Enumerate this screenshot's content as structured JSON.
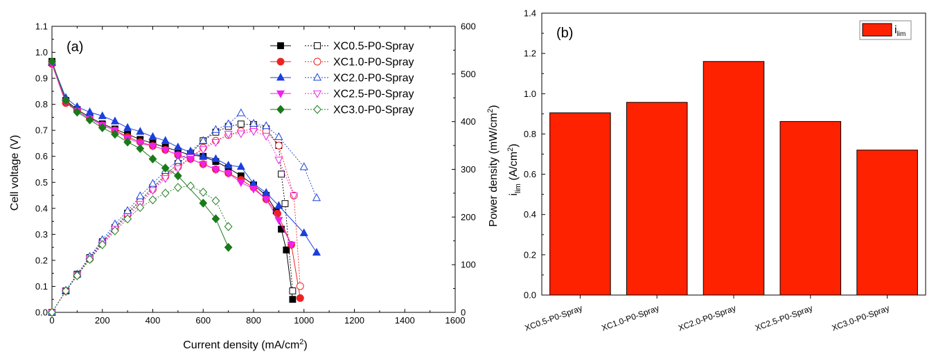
{
  "chart_data": [
    {
      "type": "line",
      "panel_label": "(a)",
      "xlabel": "Current density (mA/cm",
      "xlabel_sup": "2",
      "xlabel_end": ")",
      "ylabel": "Cell voltage (V)",
      "ylabel_right": "Power density (mW/cm",
      "ylabel_right_sup": "2",
      "ylabel_right_end": ")",
      "xlim": [
        0,
        1600
      ],
      "ylim": [
        0,
        1.1
      ],
      "ylim_right": [
        0,
        600
      ],
      "xticks": [
        "0",
        "200",
        "400",
        "600",
        "800",
        "1000",
        "1200",
        "1400",
        "1600"
      ],
      "yticks": [
        "0.0",
        "0.1",
        "0.2",
        "0.3",
        "0.4",
        "0.5",
        "0.6",
        "0.7",
        "0.8",
        "0.9",
        "1.0",
        "1.1"
      ],
      "yticks_right": [
        "0",
        "100",
        "200",
        "300",
        "400",
        "500",
        "600"
      ],
      "legend_position": "top-right",
      "series": [
        {
          "name": "XC0.5-P0-Spray",
          "color": "#000000",
          "marker": "square",
          "voltage": [
            [
              0,
              0.965
            ],
            [
              55,
              0.815
            ],
            [
              100,
              0.78
            ],
            [
              150,
              0.75
            ],
            [
              200,
              0.725
            ],
            [
              250,
              0.705
            ],
            [
              300,
              0.685
            ],
            [
              350,
              0.665
            ],
            [
              400,
              0.65
            ],
            [
              450,
              0.635
            ],
            [
              500,
              0.62
            ],
            [
              550,
              0.605
            ],
            [
              600,
              0.6
            ],
            [
              650,
              0.58
            ],
            [
              700,
              0.555
            ],
            [
              750,
              0.525
            ],
            [
              800,
              0.49
            ],
            [
              850,
              0.45
            ],
            [
              890,
              0.39
            ],
            [
              910,
              0.32
            ],
            [
              930,
              0.24
            ],
            [
              955,
              0.05
            ]
          ],
          "power": [
            [
              0,
              0
            ],
            [
              55,
              45
            ],
            [
              100,
              80
            ],
            [
              150,
              115
            ],
            [
              200,
              148
            ],
            [
              250,
              178
            ],
            [
              300,
              208
            ],
            [
              350,
              235
            ],
            [
              400,
              262
            ],
            [
              450,
              288
            ],
            [
              500,
              312
            ],
            [
              550,
              333
            ],
            [
              600,
              360
            ],
            [
              650,
              378
            ],
            [
              700,
              390
            ],
            [
              750,
              395
            ],
            [
              800,
              394
            ],
            [
              850,
              385
            ],
            [
              900,
              350
            ],
            [
              910,
              290
            ],
            [
              925,
              228
            ],
            [
              955,
              45
            ]
          ]
        },
        {
          "name": "XC1.0-P0-Spray",
          "color": "#ee2222",
          "marker": "circle",
          "voltage": [
            [
              0,
              0.955
            ],
            [
              55,
              0.805
            ],
            [
              100,
              0.775
            ],
            [
              150,
              0.745
            ],
            [
              200,
              0.72
            ],
            [
              250,
              0.7
            ],
            [
              300,
              0.675
            ],
            [
              350,
              0.655
            ],
            [
              400,
              0.64
            ],
            [
              450,
              0.625
            ],
            [
              500,
              0.605
            ],
            [
              550,
              0.59
            ],
            [
              600,
              0.57
            ],
            [
              650,
              0.55
            ],
            [
              700,
              0.535
            ],
            [
              750,
              0.51
            ],
            [
              800,
              0.48
            ],
            [
              850,
              0.435
            ],
            [
              895,
              0.38
            ],
            [
              950,
              0.26
            ],
            [
              985,
              0.055
            ]
          ],
          "power": [
            [
              0,
              0
            ],
            [
              55,
              45
            ],
            [
              100,
              78
            ],
            [
              150,
              112
            ],
            [
              200,
              145
            ],
            [
              250,
              175
            ],
            [
              300,
              205
            ],
            [
              350,
              232
            ],
            [
              400,
              258
            ],
            [
              450,
              285
            ],
            [
              500,
              305
            ],
            [
              550,
              325
            ],
            [
              600,
              345
            ],
            [
              650,
              360
            ],
            [
              700,
              372
            ],
            [
              750,
              380
            ],
            [
              800,
              385
            ],
            [
              850,
              380
            ],
            [
              900,
              350
            ],
            [
              960,
              245
            ],
            [
              985,
              55
            ]
          ]
        },
        {
          "name": "XC2.0-P0-Spray",
          "color": "#1a3fdd",
          "marker": "triangle-up",
          "voltage": [
            [
              0,
              0.96
            ],
            [
              55,
              0.825
            ],
            [
              100,
              0.79
            ],
            [
              150,
              0.77
            ],
            [
              200,
              0.755
            ],
            [
              250,
              0.735
            ],
            [
              300,
              0.71
            ],
            [
              350,
              0.695
            ],
            [
              400,
              0.675
            ],
            [
              450,
              0.66
            ],
            [
              500,
              0.635
            ],
            [
              550,
              0.615
            ],
            [
              600,
              0.6
            ],
            [
              650,
              0.59
            ],
            [
              700,
              0.565
            ],
            [
              750,
              0.56
            ],
            [
              800,
              0.495
            ],
            [
              850,
              0.46
            ],
            [
              900,
              0.41
            ],
            [
              1000,
              0.305
            ],
            [
              1050,
              0.23
            ]
          ],
          "power": [
            [
              0,
              0
            ],
            [
              55,
              46
            ],
            [
              100,
              80
            ],
            [
              150,
              117
            ],
            [
              200,
              152
            ],
            [
              250,
              185
            ],
            [
              300,
              213
            ],
            [
              350,
              244
            ],
            [
              400,
              270
            ],
            [
              450,
              297
            ],
            [
              500,
              318
            ],
            [
              550,
              338
            ],
            [
              600,
              360
            ],
            [
              650,
              383
            ],
            [
              700,
              395
            ],
            [
              750,
              418
            ],
            [
              800,
              396
            ],
            [
              850,
              391
            ],
            [
              900,
              368
            ],
            [
              1000,
              305
            ],
            [
              1050,
              240
            ]
          ]
        },
        {
          "name": "XC2.5-P0-Spray",
          "color": "#ee22ee",
          "marker": "triangle-down",
          "voltage": [
            [
              0,
              0.955
            ],
            [
              55,
              0.81
            ],
            [
              100,
              0.775
            ],
            [
              150,
              0.745
            ],
            [
              200,
              0.72
            ],
            [
              250,
              0.7
            ],
            [
              300,
              0.67
            ],
            [
              350,
              0.65
            ],
            [
              400,
              0.64
            ],
            [
              450,
              0.625
            ],
            [
              500,
              0.605
            ],
            [
              550,
              0.59
            ],
            [
              600,
              0.57
            ],
            [
              650,
              0.55
            ],
            [
              700,
              0.535
            ],
            [
              750,
              0.5
            ],
            [
              800,
              0.475
            ],
            [
              850,
              0.435
            ],
            [
              900,
              0.355
            ],
            [
              950,
              0.26
            ]
          ],
          "power": [
            [
              0,
              0
            ],
            [
              55,
              44
            ],
            [
              100,
              77
            ],
            [
              150,
              112
            ],
            [
              200,
              144
            ],
            [
              250,
              175
            ],
            [
              300,
              201
            ],
            [
              350,
              227
            ],
            [
              400,
              256
            ],
            [
              450,
              281
            ],
            [
              500,
              302
            ],
            [
              550,
              325
            ],
            [
              600,
              342
            ],
            [
              650,
              357
            ],
            [
              700,
              374
            ],
            [
              750,
              375
            ],
            [
              800,
              380
            ],
            [
              850,
              370
            ],
            [
              900,
              320
            ],
            [
              960,
              245
            ]
          ]
        },
        {
          "name": "XC3.0-P0-Spray",
          "color": "#1a7a1a",
          "marker": "diamond",
          "voltage": [
            [
              0,
              0.965
            ],
            [
              55,
              0.815
            ],
            [
              100,
              0.77
            ],
            [
              150,
              0.74
            ],
            [
              200,
              0.71
            ],
            [
              250,
              0.685
            ],
            [
              300,
              0.655
            ],
            [
              350,
              0.63
            ],
            [
              400,
              0.59
            ],
            [
              450,
              0.555
            ],
            [
              500,
              0.525
            ],
            [
              600,
              0.42
            ],
            [
              650,
              0.36
            ],
            [
              700,
              0.25
            ]
          ],
          "power": [
            [
              0,
              0
            ],
            [
              55,
              45
            ],
            [
              100,
              77
            ],
            [
              150,
              111
            ],
            [
              200,
              142
            ],
            [
              250,
              171
            ],
            [
              300,
              196
            ],
            [
              350,
              220
            ],
            [
              400,
              236
            ],
            [
              450,
              250
            ],
            [
              500,
              262
            ],
            [
              550,
              265
            ],
            [
              600,
              252
            ],
            [
              650,
              234
            ],
            [
              700,
              180
            ]
          ]
        }
      ]
    },
    {
      "type": "bar",
      "panel_label": "(b)",
      "ylabel_main": "i",
      "ylabel_sub": "lim",
      "ylabel_units": " (A/cm",
      "ylabel_sup": "2",
      "ylabel_end": ")",
      "legend_main": "i",
      "legend_sub": "lim",
      "legend_position": "top-right",
      "ylim": [
        0,
        1.4
      ],
      "yticks": [
        "0.0",
        "0.2",
        "0.4",
        "0.6",
        "0.8",
        "1.0",
        "1.2",
        "1.4"
      ],
      "color": "#ff2200",
      "categories": [
        "XC0.5-P0-Spray",
        "XC1.0-P0-Spray",
        "XC2.0-P0-Spray",
        "XC2.5-P0-Spray",
        "XC3.0-P0-Spray"
      ],
      "values": [
        0.905,
        0.957,
        1.16,
        0.862,
        0.72
      ]
    }
  ]
}
